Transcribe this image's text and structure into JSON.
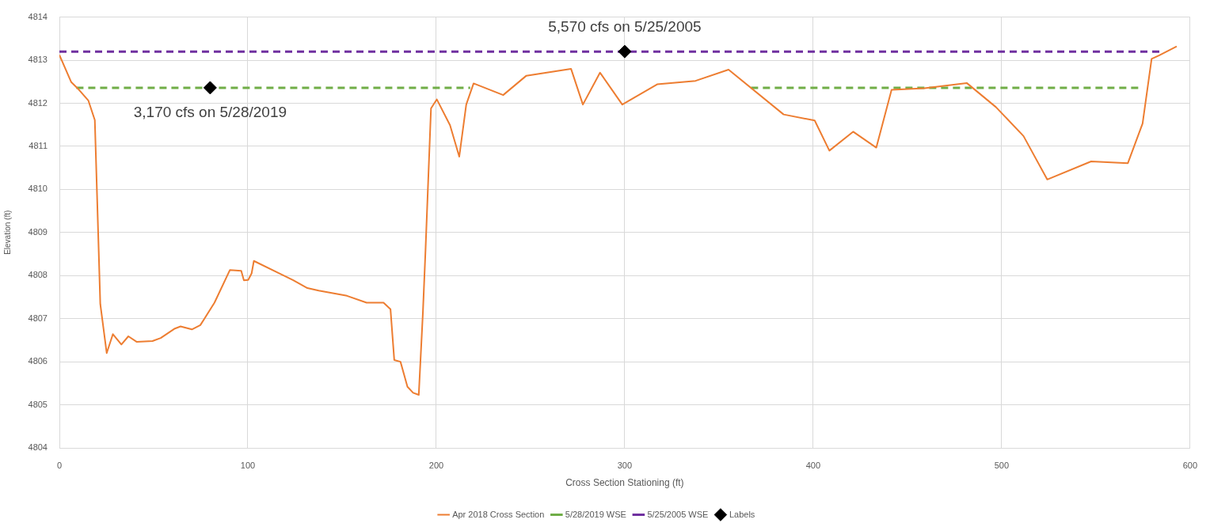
{
  "chart_data": {
    "type": "line",
    "xlabel": "Cross Section Stationing (ft)",
    "ylabel": "Elevation (ft)",
    "xlim": [
      0,
      600
    ],
    "xticks": [
      0,
      100,
      200,
      300,
      400,
      500,
      600
    ],
    "ylim": [
      4804,
      4814
    ],
    "yticks": [
      4804,
      4805,
      4806,
      4807,
      4808,
      4809,
      4810,
      4811,
      4812,
      4813,
      4814
    ],
    "grid": true,
    "legend": "bottom",
    "marker": "none",
    "line_style": "solid",
    "series": [
      {
        "name": "Apr 2018 Cross Section",
        "color": "#ed7d31",
        "x": [
          0,
          6.3,
          9.6,
          15.4,
          18.8,
          21.7,
          25.1,
          28.4,
          32.9,
          36.6,
          41.1,
          49.4,
          53.8,
          61.3,
          64.3,
          70.3,
          74.8,
          82.3,
          90.5,
          96.5,
          97.9,
          100.2,
          102,
          103.2,
          118.1,
          124.1,
          131.6,
          137.6,
          152.6,
          163,
          172,
          175.7,
          177.7,
          181,
          184.7,
          187.7,
          190.7,
          192.9,
          194.3,
          197.2,
          200.3,
          207.3,
          212.2,
          215.9,
          219.8,
          235.5,
          247.8,
          271.5,
          277.8,
          286.9,
          298.7,
          317.2,
          337.6,
          355.1,
          384.3,
          400.8,
          408.6,
          421.2,
          433.5,
          441.6,
          459.1,
          481.5,
          497,
          511.6,
          524.2,
          547.5,
          567,
          574.8,
          579.6,
          583.5,
          592.9
        ],
        "values": [
          4813.12,
          4812.49,
          4812.35,
          4812.06,
          4811.61,
          4807.34,
          4806.2,
          4806.64,
          4806.4,
          4806.59,
          4806.46,
          4806.48,
          4806.55,
          4806.77,
          4806.82,
          4806.75,
          4806.85,
          4807.37,
          4808.13,
          4808.11,
          4807.89,
          4807.9,
          4808.05,
          4808.34,
          4808.02,
          4807.89,
          4807.71,
          4807.65,
          4807.53,
          4807.37,
          4807.37,
          4807.22,
          4806.04,
          4806.0,
          4805.42,
          4805.28,
          4805.23,
          4807.14,
          4808.6,
          4811.88,
          4812.09,
          4811.49,
          4810.76,
          4811.97,
          4812.46,
          4812.19,
          4812.64,
          4812.8,
          4811.97,
          4812.71,
          4811.97,
          4812.44,
          4812.52,
          4812.78,
          4811.74,
          4811.6,
          4810.9,
          4811.34,
          4810.97,
          4812.31,
          4812.35,
          4812.47,
          4811.91,
          4811.24,
          4810.23,
          4810.65,
          4810.61,
          4811.53,
          4813.03,
          4813.11,
          4813.32
        ]
      },
      {
        "name": "5/28/2019 WSE",
        "color": "#70ad47",
        "line_style": "dashed",
        "x": [
          9,
          218,
          293,
          367,
          574
        ],
        "values": [
          4812.36,
          4812.36,
          null,
          4812.36,
          4812.36
        ]
      },
      {
        "name": "5/25/2005 WSE",
        "color": "#7030a0",
        "line_style": "dashed",
        "x": [
          0,
          585
        ],
        "values": [
          4813.2,
          4813.2
        ]
      },
      {
        "name": "Labels",
        "type": "scatter",
        "color": "#000000",
        "marker": "diamond",
        "x": [
          80,
          300
        ],
        "values": [
          4812.36,
          4813.2
        ]
      }
    ],
    "annotations": [
      {
        "text": "3,170 cfs on 5/28/2019",
        "x": 80,
        "y": 4812.36
      },
      {
        "text": "5,570 cfs on 5/25/2005",
        "x": 300,
        "y": 4813.2
      }
    ]
  }
}
